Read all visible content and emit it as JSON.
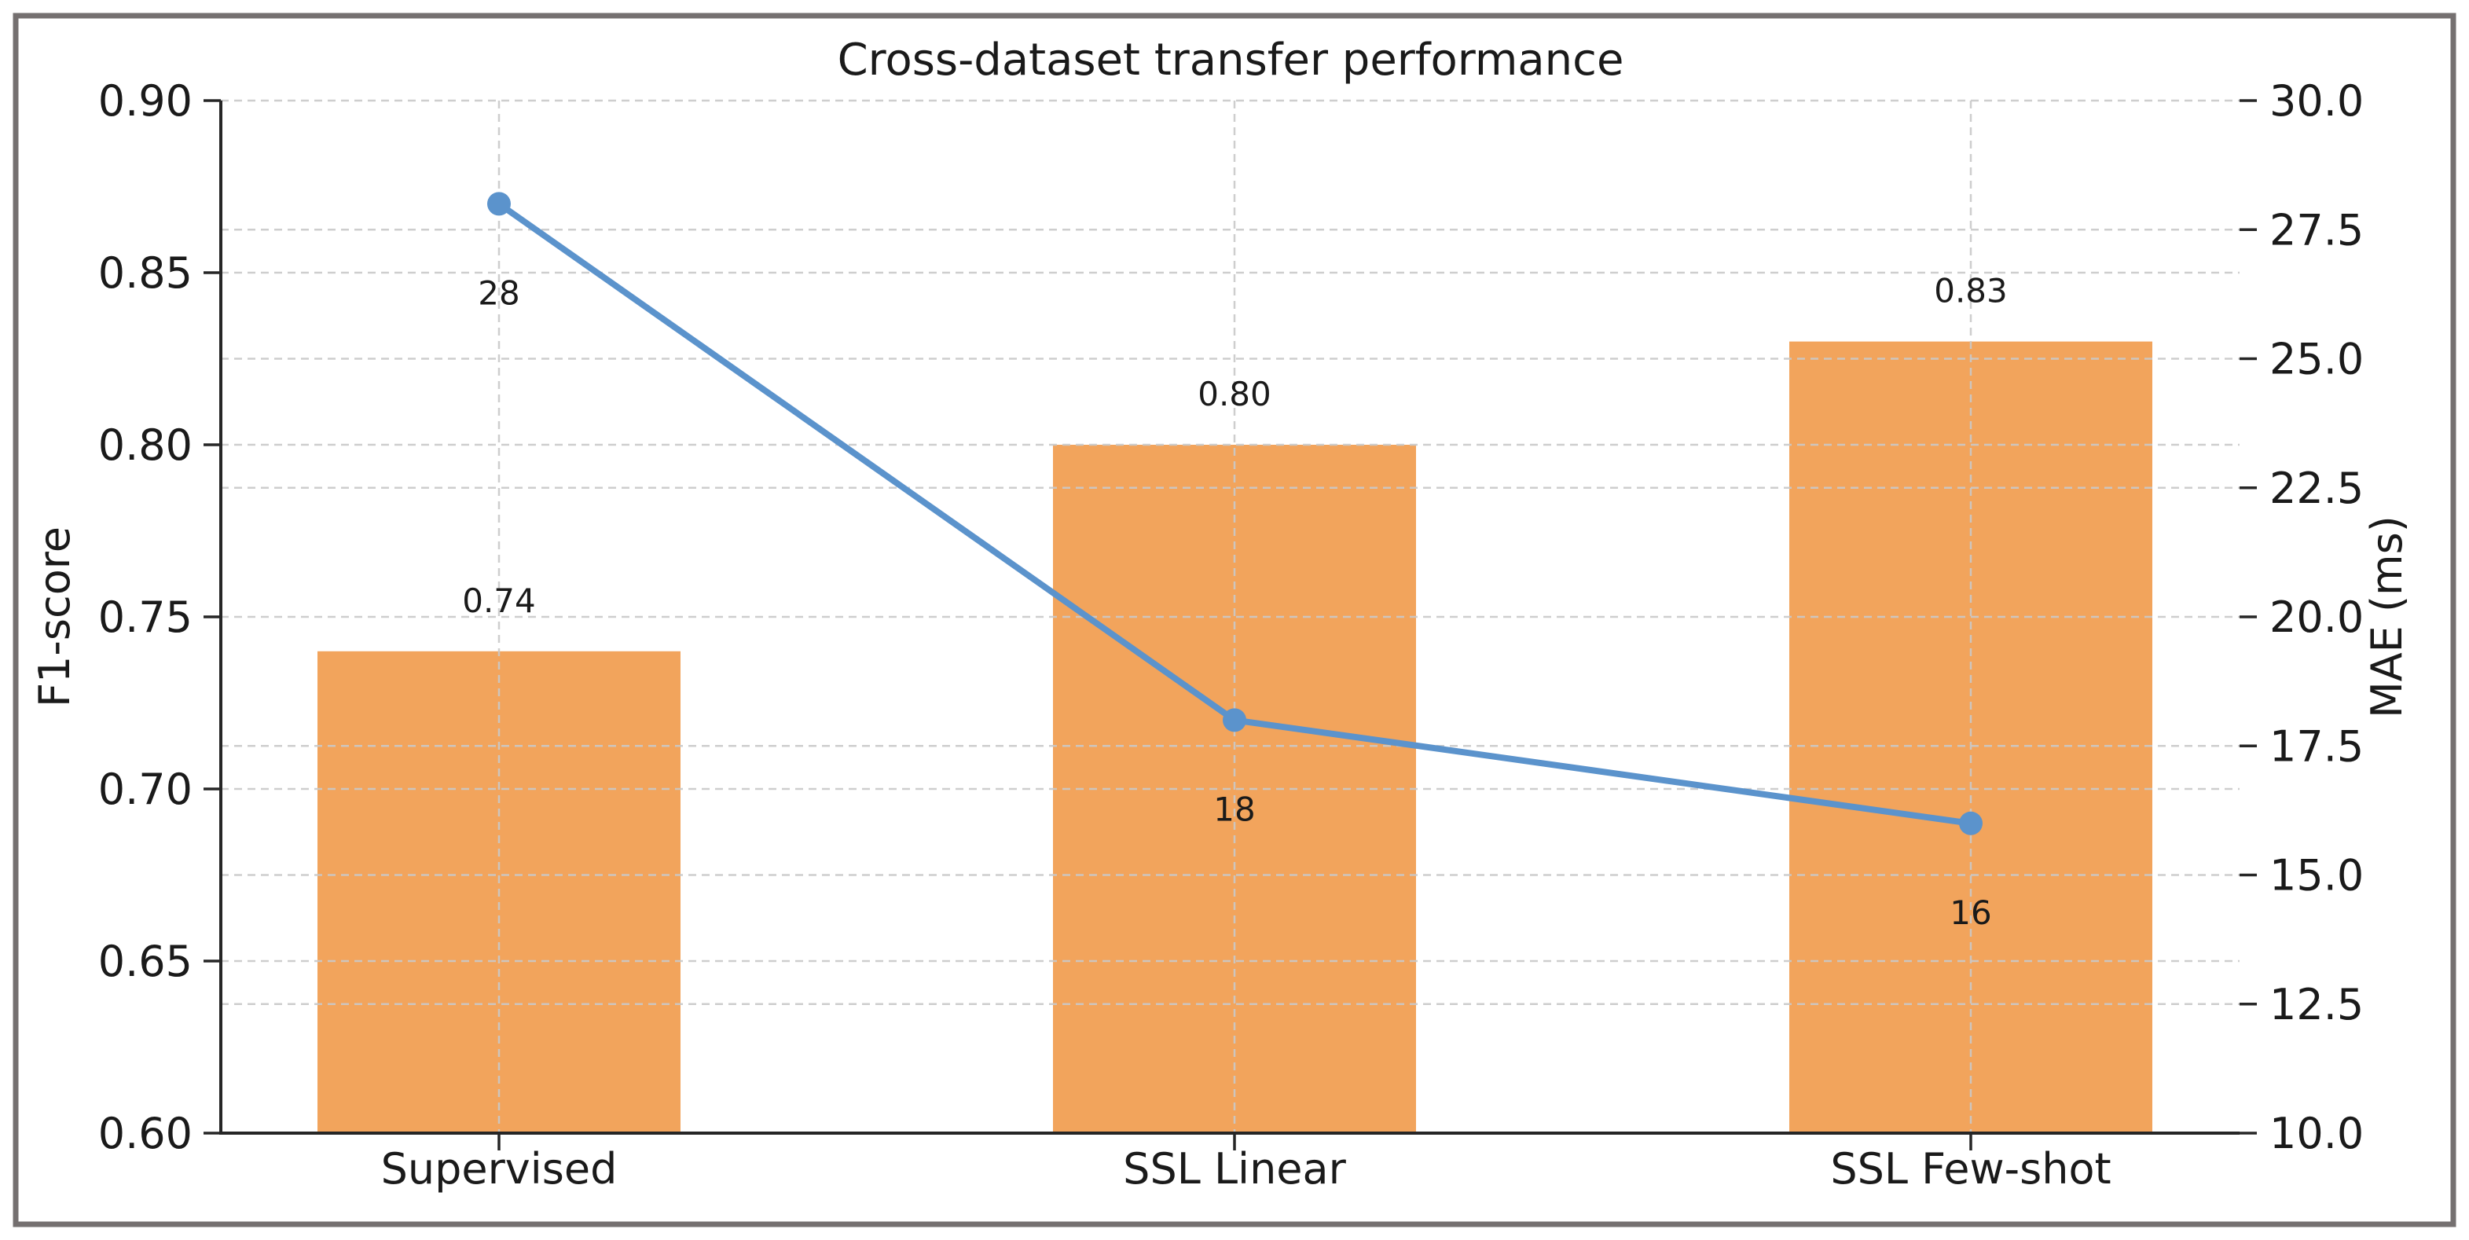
{
  "colors": {
    "bar": "#F2A45C",
    "line": "#5B93CC",
    "marker": "#5B93CC",
    "grid": "#C9C9C9",
    "axis": "#262626",
    "text": "#1A1A1A",
    "frame": "#757070",
    "background": "#FFFFFF"
  },
  "chart_data": {
    "type": "bar",
    "title": "Cross-dataset transfer performance",
    "categories": [
      "Supervised",
      "SSL Linear",
      "SSL Few-shot"
    ],
    "series": [
      {
        "name": "F1-score",
        "render": "bar",
        "axis": "left",
        "values": [
          0.74,
          0.8,
          0.83
        ],
        "value_labels": [
          "0.74",
          "0.80",
          "0.83"
        ]
      },
      {
        "name": "MAE (ms)",
        "render": "line",
        "axis": "right",
        "values": [
          28,
          18,
          16
        ],
        "value_labels": [
          "28",
          "18",
          "16"
        ]
      }
    ],
    "left_axis": {
      "label": "F1-score",
      "min": 0.6,
      "max": 0.9,
      "tick_values": [
        0.9,
        0.85,
        0.8,
        0.75,
        0.7,
        0.65,
        0.6
      ],
      "tick_labels": [
        "0.90",
        "0.85",
        "0.80",
        "0.75",
        "0.70",
        "0.65",
        "0.60"
      ]
    },
    "right_axis": {
      "label": "MAE (ms)",
      "min": 10.0,
      "max": 30.0,
      "tick_values": [
        30.0,
        27.5,
        25.0,
        22.5,
        20.0,
        17.5,
        15.0,
        12.5,
        10.0
      ],
      "tick_labels": [
        "30.0",
        "27.5",
        "25.0",
        "22.5",
        "20.0",
        "17.5",
        "15.0",
        "12.5",
        "10.0"
      ]
    },
    "grid": true,
    "legend": "none"
  }
}
